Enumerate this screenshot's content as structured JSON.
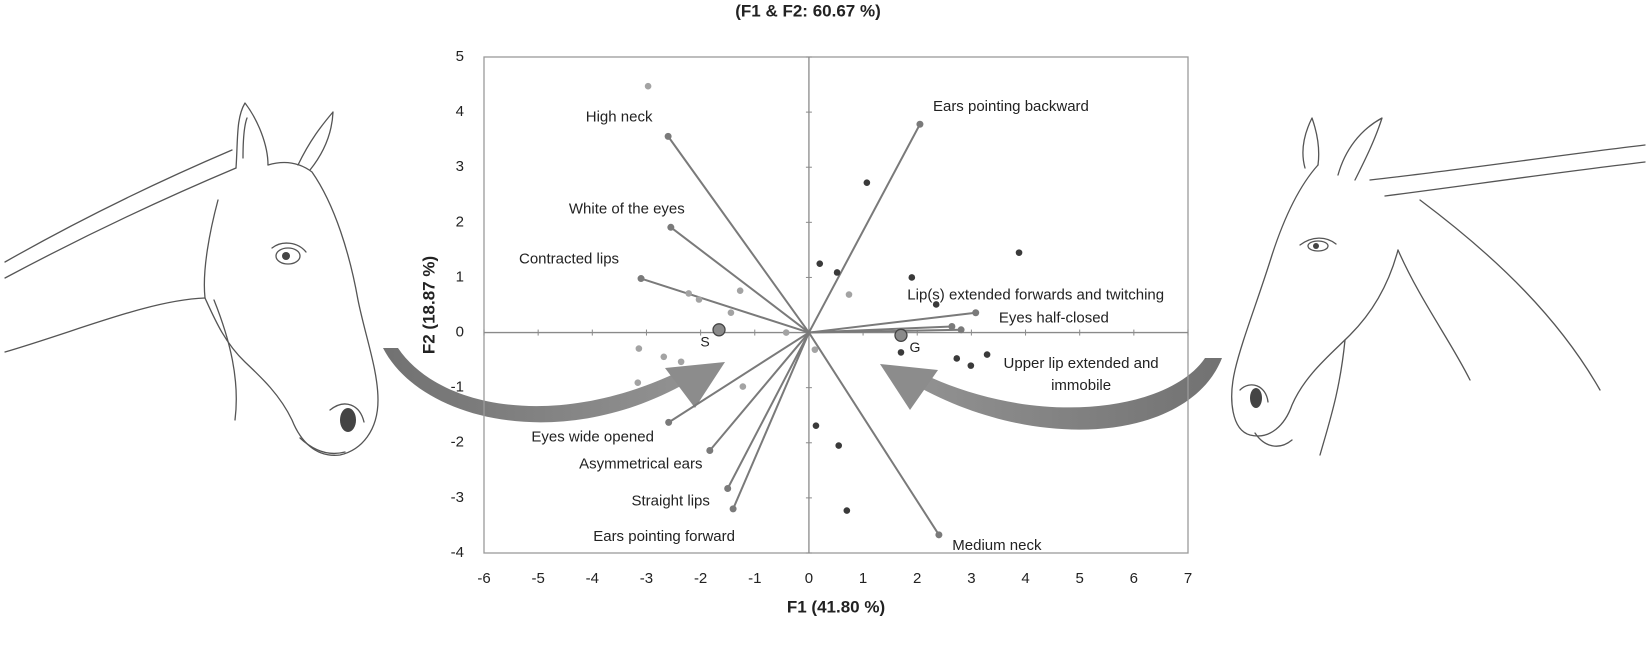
{
  "chart_data": {
    "type": "biplot",
    "title": "(F1 & F2: 60.67 %)",
    "xlabel": "F1 (41.80 %)",
    "ylabel": "F2 (18.87 %)",
    "xlim": [
      -6,
      7
    ],
    "ylim": [
      -4,
      5
    ],
    "xticks": [
      -6,
      -5,
      -4,
      -3,
      -2,
      -1,
      0,
      1,
      2,
      3,
      4,
      5,
      6,
      7
    ],
    "yticks": [
      -4,
      -3,
      -2,
      -1,
      0,
      1,
      2,
      3,
      4,
      5
    ],
    "vector_color": "#7a7a7a",
    "vectors": [
      {
        "label": "High neck",
        "x": -2.6,
        "y": 3.56
      },
      {
        "label": "Ears pointing backward",
        "x": 2.05,
        "y": 3.78
      },
      {
        "label": "White of the eyes",
        "x": -2.55,
        "y": 1.91
      },
      {
        "label": "Contracted lips",
        "x": -3.1,
        "y": 0.98
      },
      {
        "label": "Lip(s) extended forwards and twitching",
        "x": 3.08,
        "y": 0.36
      },
      {
        "label": "Eyes half-closed",
        "x": 2.64,
        "y": 0.11
      },
      {
        "label": "Upper lip extended and immobile",
        "x": 2.81,
        "y": 0.05
      },
      {
        "label": "Eyes wide opened",
        "x": -2.59,
        "y": -1.63
      },
      {
        "label": "Asymmetrical ears",
        "x": -1.83,
        "y": -2.14
      },
      {
        "label": "Straight lips",
        "x": -1.5,
        "y": -2.83
      },
      {
        "label": "Ears pointing forward",
        "x": -1.4,
        "y": -3.2
      },
      {
        "label": "Medium neck",
        "x": 2.4,
        "y": -3.67
      }
    ],
    "points": [
      {
        "color": "#a3a3a3",
        "x": [
          -2.97,
          -2.22,
          -2.03,
          -1.27,
          -1.44,
          -0.42,
          -3.14,
          -2.68,
          -2.36,
          -3.16,
          -1.22,
          0.74,
          0.11
        ],
        "y": [
          4.47,
          0.71,
          0.6,
          0.76,
          0.36,
          0.0,
          -0.29,
          -0.44,
          -0.53,
          -0.91,
          -0.98,
          0.69,
          -0.31
        ]
      },
      {
        "color": "#3a3a3a",
        "x": [
          1.07,
          0.2,
          0.52,
          1.9,
          2.35,
          3.88,
          1.7,
          2.73,
          2.99,
          3.29,
          0.13,
          0.55,
          0.7
        ],
        "y": [
          2.72,
          1.25,
          1.09,
          1.0,
          0.51,
          1.45,
          -0.36,
          -0.47,
          -0.6,
          -0.4,
          -1.69,
          -2.05,
          -3.23
        ]
      }
    ],
    "centroids": {
      "color": "#8a8a8a",
      "labels": [
        "S",
        "G"
      ],
      "x": [
        -1.66,
        1.7
      ],
      "y": [
        0.05,
        -0.05
      ]
    }
  }
}
